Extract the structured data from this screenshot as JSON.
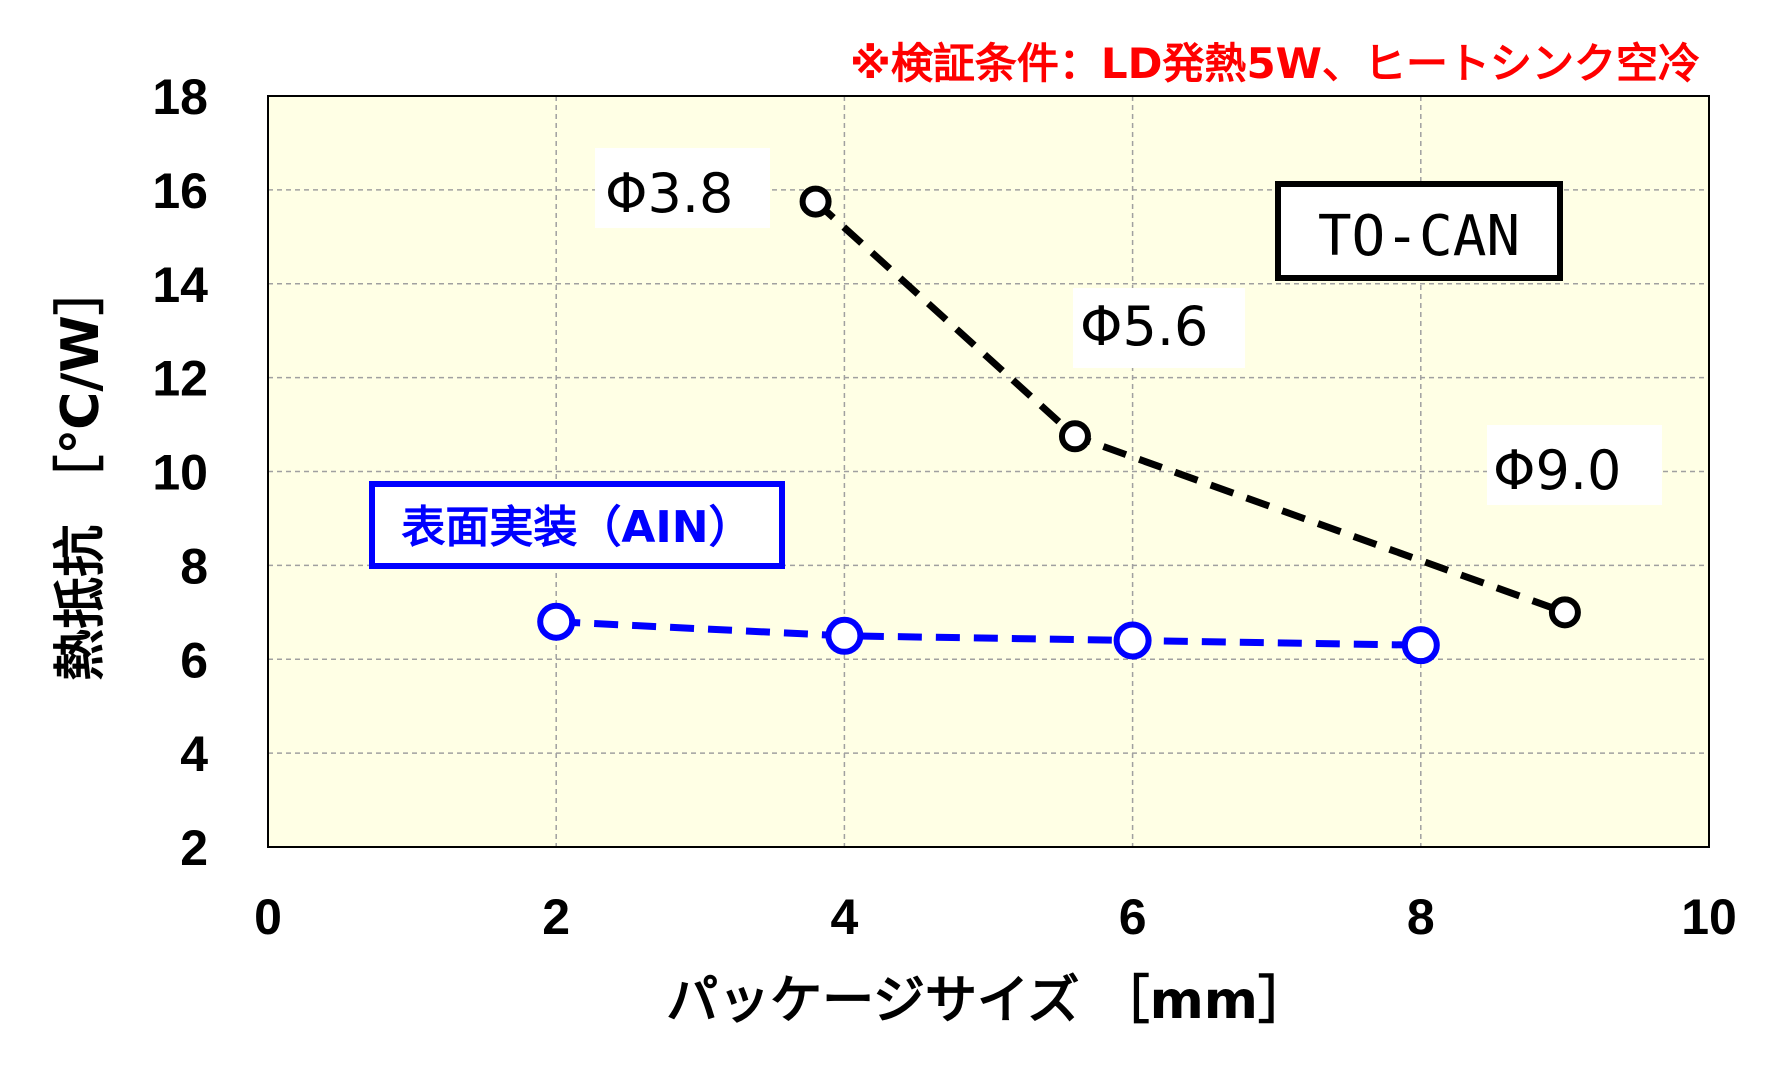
{
  "chart_data": {
    "type": "line",
    "annotation_top": "※検証条件：LD発熱5W、ヒートシンク空冷",
    "xlabel": "パッケージサイズ ［mm］",
    "ylabel": "熱抵抗 ［℃/W］",
    "xlim": [
      0,
      10
    ],
    "ylim": [
      2,
      18
    ],
    "xticks": [
      0,
      2,
      4,
      6,
      8,
      10
    ],
    "yticks": [
      2,
      4,
      6,
      8,
      10,
      12,
      14,
      16,
      18
    ],
    "grid": true,
    "plot_background": "#ffffe5",
    "series": [
      {
        "name": "TO-CAN",
        "color": "#000000",
        "style": "dashed",
        "points": [
          {
            "x": 3.8,
            "y": 15.75,
            "label": "Φ3.8"
          },
          {
            "x": 5.6,
            "y": 10.75,
            "label": "Φ5.6"
          },
          {
            "x": 9.0,
            "y": 7.0,
            "label": "Φ9.0"
          }
        ]
      },
      {
        "name": "表面実装（AIN）",
        "color": "#0000ff",
        "style": "dashed",
        "points": [
          {
            "x": 2,
            "y": 6.8
          },
          {
            "x": 4,
            "y": 6.5
          },
          {
            "x": 6,
            "y": 6.4
          },
          {
            "x": 8,
            "y": 6.3
          }
        ]
      }
    ]
  }
}
